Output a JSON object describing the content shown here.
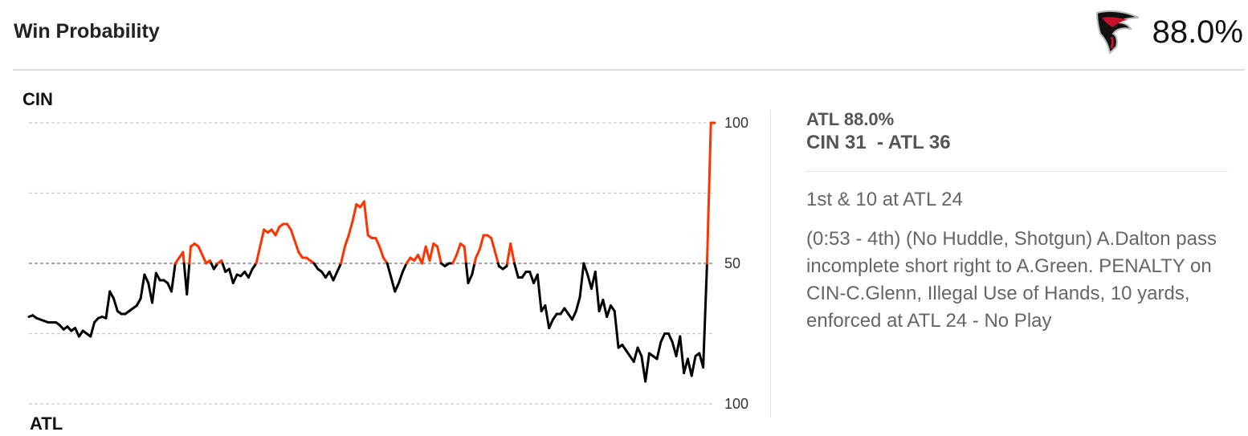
{
  "header": {
    "title": "Win Probability",
    "win_pct": "88.0%",
    "logo_icon": "falcons-logo-icon"
  },
  "side_panel": {
    "win_prob": "ATL 88.0%",
    "score": "CIN 31  - ATL 36",
    "down_distance": "1st & 10 at ATL 24",
    "play_description": "(0:53 - 4th) (No Huddle, Shotgun) A.Dalton pass incomplete short right to A.Green. PENALTY on CIN-C.Glenn, Illegal Use of Hands, 10 yards, enforced at ATL 24 - No Play"
  },
  "colors": {
    "cin": "#ff3300",
    "atl": "#000000",
    "grid": "#cccccc",
    "midline": "#888888"
  },
  "chart_data": {
    "type": "line",
    "top_team": "CIN",
    "bottom_team": "ATL",
    "y_tick_labels": [
      "100",
      "50",
      "100"
    ],
    "ylim": [
      -100,
      100
    ],
    "grid": true,
    "grid_values": [
      100,
      50,
      0,
      -50,
      -100
    ],
    "note_values": "signed win probability margin: positive = CIN favoured, negative = ATL favoured",
    "series": [
      {
        "values": [
          -38,
          -37,
          -39,
          -40,
          -41,
          -42,
          -42,
          -42,
          -44,
          -47,
          -45,
          -48,
          -46,
          -52,
          -48,
          -50,
          -52,
          -42,
          -39,
          -38,
          -39,
          -20,
          -25,
          -34,
          -36,
          -36,
          -34,
          -32,
          -30,
          -25,
          -8,
          -14,
          -28,
          -7,
          -12,
          -12,
          -14,
          -20,
          0,
          4,
          8,
          -22,
          12,
          14,
          12,
          6,
          0,
          2,
          -4,
          0,
          2,
          -6,
          -4,
          -14,
          -8,
          -9,
          -6,
          -10,
          -4,
          0,
          12,
          24,
          22,
          24,
          20,
          26,
          28,
          28,
          24,
          16,
          8,
          4,
          4,
          2,
          0,
          -4,
          -6,
          -10,
          -6,
          -12,
          -6,
          0,
          12,
          20,
          30,
          42,
          40,
          44,
          20,
          18,
          18,
          12,
          4,
          0,
          -10,
          -20,
          -14,
          -6,
          0,
          4,
          2,
          6,
          0,
          12,
          2,
          14,
          12,
          0,
          -2,
          0,
          0,
          6,
          14,
          12,
          -14,
          -8,
          4,
          10,
          20,
          20,
          18,
          8,
          -2,
          -4,
          -2,
          14,
          0,
          -10,
          -10,
          -6,
          -6,
          -14,
          -8,
          -34,
          -30,
          -46,
          -40,
          -36,
          -36,
          -32,
          -36,
          -40,
          -34,
          -24,
          0,
          -8,
          -18,
          -6,
          -34,
          -26,
          -38,
          -30,
          -34,
          -60,
          -58,
          -62,
          -66,
          -70,
          -60,
          -66,
          -84,
          -64,
          -66,
          -68,
          -56,
          -50,
          -50,
          -56,
          -66,
          -52,
          -78,
          -68,
          -80,
          -66,
          -64,
          -74,
          0,
          100,
          100
        ]
      }
    ]
  }
}
